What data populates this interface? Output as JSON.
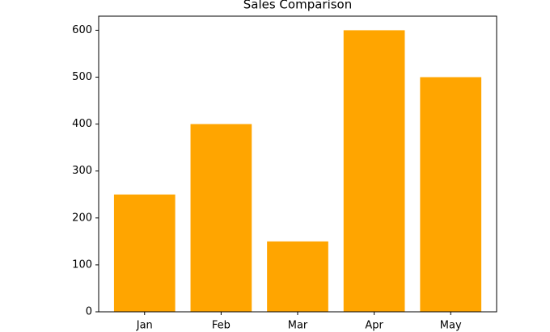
{
  "chart_data": {
    "type": "bar",
    "title": "Sales Comparison",
    "categories": [
      "Jan",
      "Feb",
      "Mar",
      "Apr",
      "May"
    ],
    "values": [
      250,
      400,
      150,
      600,
      500
    ],
    "color": "#ffa500",
    "ylim": [
      0,
      630
    ],
    "yticks": [
      0,
      100,
      200,
      300,
      400,
      500,
      600
    ],
    "grid": false
  }
}
